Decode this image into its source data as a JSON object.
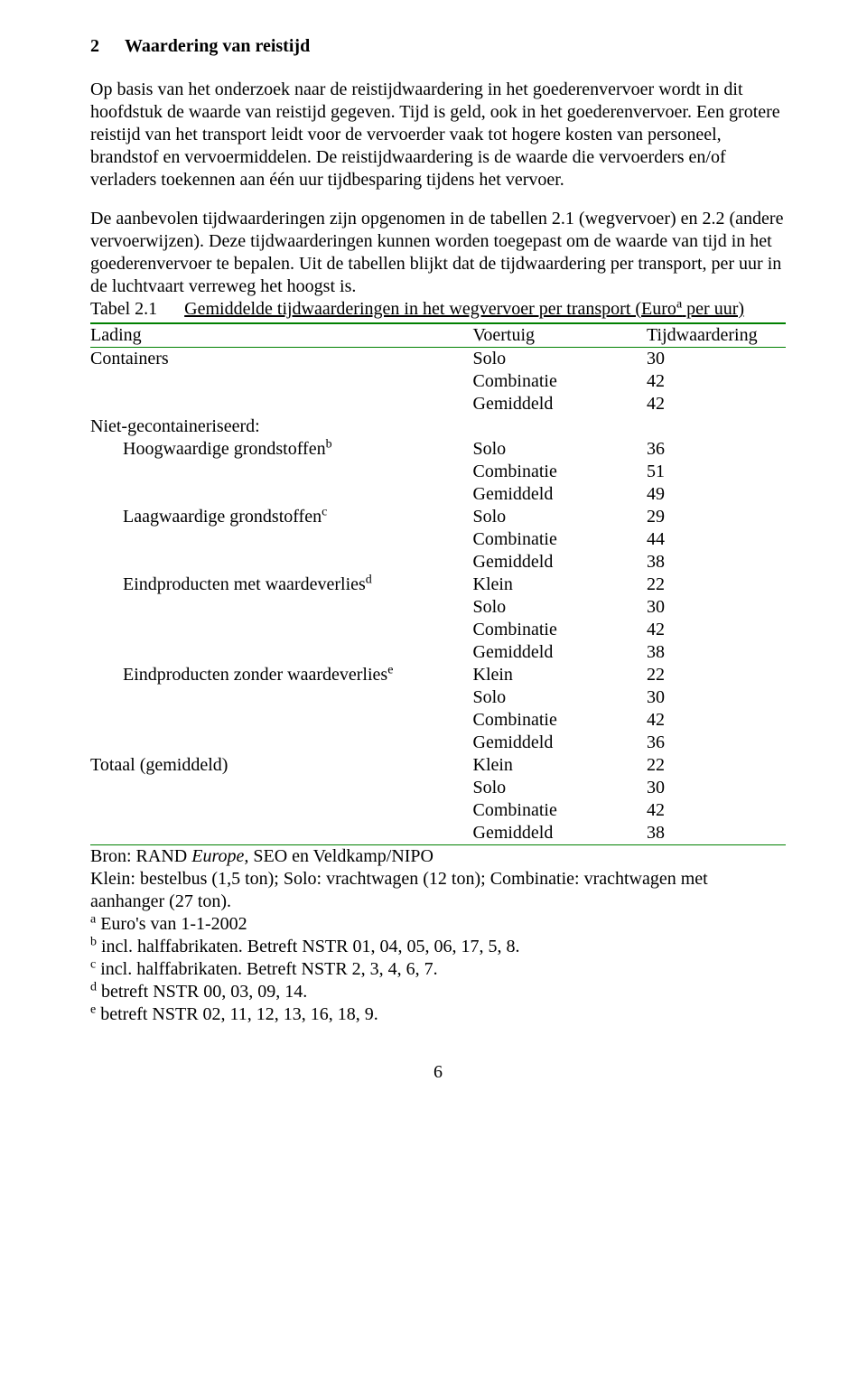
{
  "heading": {
    "number": "2",
    "title": "Waardering van reistijd"
  },
  "paragraphs": {
    "p1": "Op basis van het onderzoek naar de reistijdwaardering in het goederenvervoer wordt in dit hoofdstuk de waarde van reistijd gegeven. Tijd is geld, ook in het goederenvervoer. Een grotere reistijd van het transport leidt voor de vervoerder vaak tot hogere kosten van personeel, brandstof en vervoermiddelen. De reistijdwaardering is de waarde die vervoerders en/of verladers toekennen aan één uur tijdbesparing tijdens het vervoer.",
    "p2": "De aanbevolen tijdwaarderingen zijn opgenomen in de tabellen 2.1 (wegvervoer) en 2.2 (andere vervoerwijzen). Deze tijdwaarderingen kunnen worden toegepast om de waarde van tijd in het goederenvervoer te bepalen. Uit de tabellen blijkt dat de tijdwaardering per transport, per uur in de luchtvaart verreweg het hoogst is."
  },
  "tableCaption": {
    "label": "Tabel 2.1",
    "titlePre": "Gemiddelde tijdwaarderingen in het wegvervoer per transport (Euro",
    "titleSup": "a",
    "titlePost": " per uur)"
  },
  "tableHeaders": {
    "c1": "Lading",
    "c2": "Voertuig",
    "c3": "Tijdwaardering"
  },
  "rows": [
    {
      "lading": "Containers",
      "voertuig": "Solo",
      "waarde": "30"
    },
    {
      "lading": "",
      "voertuig": "Combinatie",
      "waarde": "42"
    },
    {
      "lading": "",
      "voertuig": "Gemiddeld",
      "waarde": "42"
    },
    {
      "lading": "Niet-gecontaineriseerd:",
      "voertuig": "",
      "waarde": ""
    },
    {
      "lading": "Hoogwaardige grondstoffen",
      "sup": "b",
      "indent": true,
      "voertuig": "Solo",
      "waarde": "36"
    },
    {
      "lading": "",
      "voertuig": "Combinatie",
      "waarde": "51"
    },
    {
      "lading": "",
      "voertuig": "Gemiddeld",
      "waarde": "49"
    },
    {
      "lading": "Laagwaardige grondstoffen",
      "sup": "c",
      "indent": true,
      "voertuig": "Solo",
      "waarde": "29"
    },
    {
      "lading": "",
      "voertuig": "Combinatie",
      "waarde": "44"
    },
    {
      "lading": "",
      "voertuig": "Gemiddeld",
      "waarde": "38"
    },
    {
      "lading": "Eindproducten  met waardeverlies",
      "sup": "d",
      "indent": true,
      "voertuig": "Klein",
      "waarde": "22"
    },
    {
      "lading": "",
      "voertuig": "Solo",
      "waarde": "30"
    },
    {
      "lading": "",
      "voertuig": "Combinatie",
      "waarde": "42"
    },
    {
      "lading": "",
      "voertuig": "Gemiddeld",
      "waarde": "38"
    },
    {
      "lading": "Eindproducten  zonder waardeverlies",
      "sup": "e",
      "indent": true,
      "voertuig": "Klein",
      "waarde": "22"
    },
    {
      "lading": "",
      "voertuig": "Solo",
      "waarde": "30"
    },
    {
      "lading": "",
      "voertuig": "Combinatie",
      "waarde": "42"
    },
    {
      "lading": "",
      "voertuig": "Gemiddeld",
      "waarde": "36"
    },
    {
      "lading": "Totaal (gemiddeld)",
      "voertuig": "Klein",
      "waarde": "22"
    },
    {
      "lading": "",
      "voertuig": "Solo",
      "waarde": "30"
    },
    {
      "lading": "",
      "voertuig": "Combinatie",
      "waarde": "42"
    },
    {
      "lading": "",
      "voertuig": "Gemiddeld",
      "waarde": "38"
    }
  ],
  "source": {
    "pre": "Bron: RAND ",
    "italic": "Europe,",
    "post": " SEO en Veldkamp/NIPO"
  },
  "footnotes": {
    "f0": "Klein: bestelbus (1,5 ton); Solo: vrachtwagen (12 ton); Combinatie: vrachtwagen met aanhanger (27 ton).",
    "fa_sup": "a",
    "fa": " Euro's van 1-1-2002",
    "fb_sup": "b",
    "fb": " incl. halffabrikaten. Betreft NSTR 01, 04, 05, 06, 17, 5, 8.",
    "fc_sup": "c",
    "fc": " incl. halffabrikaten. Betreft NSTR 2, 3, 4, 6, 7.",
    "fd_sup": "d",
    "fd": " betreft NSTR 00, 03, 09, 14.",
    "fe_sup": "e",
    "fe": " betreft NSTR 02, 11, 12, 13, 16, 18, 9."
  },
  "pageNumber": "6",
  "style": {
    "accentColor": "#008000",
    "textColor": "#000000",
    "background": "#ffffff",
    "fontFamily": "Times New Roman",
    "bodyFontSize": 20
  }
}
